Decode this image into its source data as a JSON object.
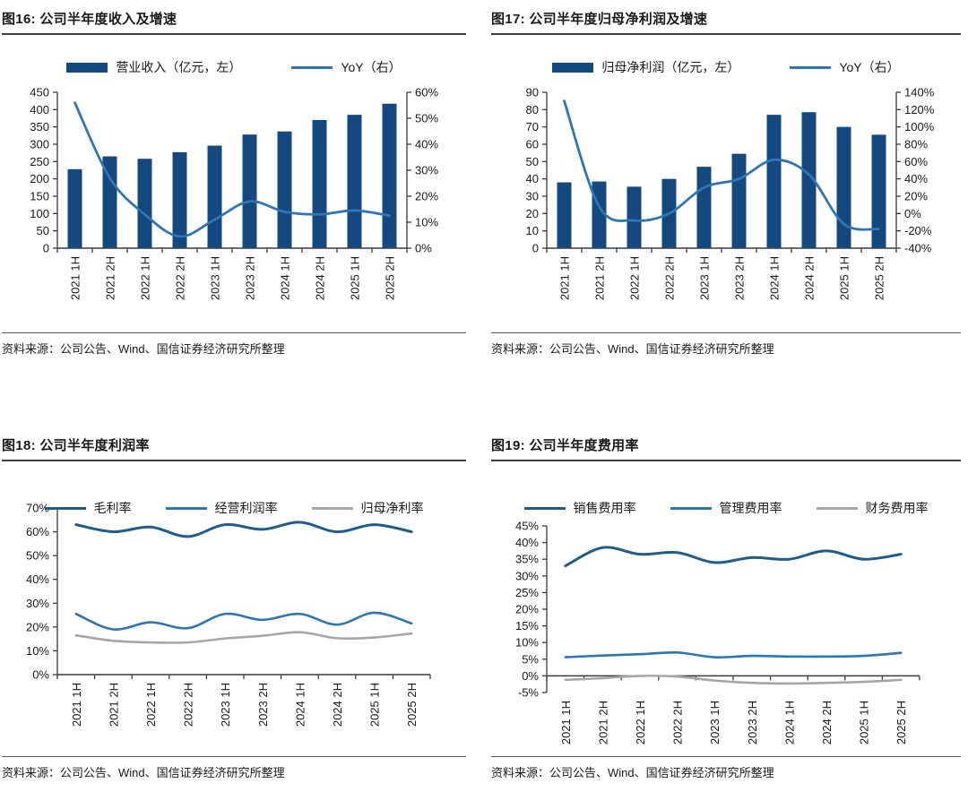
{
  "source": {
    "label": "资料来源：公司公告、Wind、国信证券经济研究所整理"
  },
  "categories": [
    "2021 1H",
    "2021 2H",
    "2022 1H",
    "2022 2H",
    "2023 1H",
    "2023 2H",
    "2024 1H",
    "2024 2H",
    "2025 1H",
    "2025 2H"
  ],
  "colors": {
    "bar_navy": "#14497F",
    "line_blue": "#2E75B6",
    "line_dark": "#1E5C8C",
    "line_gray": "#A6A6A6",
    "axis": "#3a3a3a",
    "title_rule": "#404040",
    "text": "#1a1a1a"
  },
  "chart_data": [
    {
      "id": "fig16",
      "type": "bar",
      "title": "图16: 公司半年度收入及增速",
      "left_axis": {
        "min": 0,
        "max": 450,
        "step": 50,
        "percent": false
      },
      "right_axis": {
        "min": 0,
        "max": 60,
        "step": 10,
        "percent": true
      },
      "legend_position": "top",
      "series": [
        {
          "name": "营业收入（亿元，左）",
          "kind": "bar",
          "axis": "left",
          "color": "#14497F",
          "values": [
            228,
            265,
            258,
            277,
            296,
            328,
            337,
            370,
            385,
            417
          ]
        },
        {
          "name": "YoY（右）",
          "kind": "line",
          "axis": "right",
          "color": "#2E75B6",
          "width": 2.8,
          "values": [
            56,
            27,
            13,
            4.5,
            11,
            18,
            14,
            13,
            14.5,
            12.5
          ]
        }
      ]
    },
    {
      "id": "fig17",
      "type": "bar",
      "title": "图17: 公司半年度归母净利润及增速",
      "left_axis": {
        "min": 0,
        "max": 90,
        "step": 10,
        "percent": false
      },
      "right_axis": {
        "min": -40,
        "max": 140,
        "step": 20,
        "percent": true
      },
      "legend_position": "top",
      "series": [
        {
          "name": "归母净利润（亿元，左）",
          "kind": "bar",
          "axis": "left",
          "color": "#14497F",
          "values": [
            38,
            38.5,
            35.5,
            40,
            47,
            54.5,
            77,
            78.5,
            70,
            65.5
          ]
        },
        {
          "name": "YoY（右）",
          "kind": "line",
          "axis": "right",
          "color": "#2E75B6",
          "width": 2.8,
          "values": [
            130,
            8,
            -8,
            0,
            30,
            40,
            62,
            45,
            -12,
            -18
          ]
        }
      ]
    },
    {
      "id": "fig18",
      "type": "line",
      "title": "图18: 公司半年度利润率",
      "left_axis": {
        "min": 0,
        "max": 70,
        "step": 10,
        "percent": true
      },
      "legend_position": "overlap",
      "series": [
        {
          "name": "毛利率",
          "kind": "line",
          "axis": "left",
          "color": "#1E5C8C",
          "width": 3,
          "values": [
            63,
            60,
            62,
            58,
            63,
            61,
            64,
            60,
            63,
            60
          ]
        },
        {
          "name": "经营利润率",
          "kind": "line",
          "axis": "left",
          "color": "#2E75B6",
          "width": 2.6,
          "values": [
            25.5,
            19,
            22,
            19.5,
            25.5,
            23,
            25.5,
            21,
            26,
            21.5
          ]
        },
        {
          "name": "归母净利率",
          "kind": "line",
          "axis": "left",
          "color": "#A6A6A6",
          "width": 2.6,
          "values": [
            16.5,
            14.2,
            13.5,
            13.5,
            15.2,
            16.3,
            17.8,
            15.3,
            15.6,
            17.3
          ]
        }
      ]
    },
    {
      "id": "fig19",
      "type": "line",
      "title": "图19: 公司半年度费用率",
      "left_axis": {
        "min": -5,
        "max": 45,
        "step": 5,
        "percent": true
      },
      "legend_position": "above",
      "series": [
        {
          "name": "销售费用率",
          "kind": "line",
          "axis": "left",
          "color": "#1E5C8C",
          "width": 3,
          "values": [
            33,
            38.5,
            36.5,
            37,
            34,
            35.5,
            35,
            37.5,
            35,
            36.5
          ]
        },
        {
          "name": "管理费用率",
          "kind": "line",
          "axis": "left",
          "color": "#2E75B6",
          "width": 2.6,
          "values": [
            5.6,
            6.1,
            6.5,
            7,
            5.6,
            6,
            5.8,
            5.8,
            6,
            6.9
          ]
        },
        {
          "name": "财务费用率",
          "kind": "line",
          "axis": "left",
          "color": "#A6A6A6",
          "width": 2.6,
          "values": [
            -1.2,
            -0.7,
            0,
            -0.2,
            -1.4,
            -2.1,
            -2.3,
            -2.1,
            -1.8,
            -1.2
          ]
        }
      ]
    }
  ]
}
